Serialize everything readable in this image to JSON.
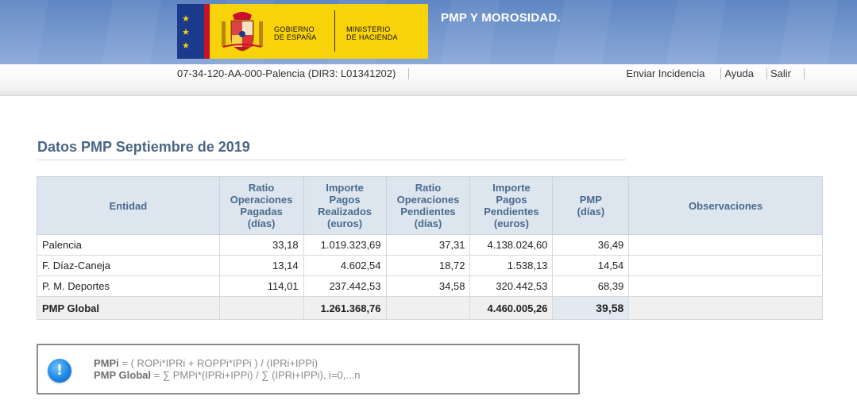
{
  "header": {
    "logo_gobierno": "GOBIERNO DE ESPAÑA",
    "logo_gobierno_l1": "GOBIERNO",
    "logo_gobierno_l2": "DE ESPAÑA",
    "logo_ministerio_l1": "MINISTERIO",
    "logo_ministerio_l2": "DE HACIENDA",
    "app_title": "PMP Y MOROSIDAD.",
    "colors": {
      "banner": "#6f93cc",
      "logo_bg": "#f8d20b",
      "eu_blue": "#1b3a8c"
    }
  },
  "subbar": {
    "org_code": "07-34-120-AA-000-Palencia (DIR3: L01341202)",
    "nav": [
      {
        "label": "Enviar Incidencia"
      },
      {
        "label": "Ayuda"
      },
      {
        "label": "Salir"
      }
    ]
  },
  "section": {
    "title": "Datos PMP Septiembre de 2019"
  },
  "table": {
    "headers": {
      "entidad": "Entidad",
      "rop": [
        "Ratio",
        "Operaciones",
        "Pagadas",
        "(días)"
      ],
      "ipr": [
        "Importe",
        "Pagos",
        "Realizados",
        "(euros)"
      ],
      "ropp": [
        "Ratio",
        "Operaciones",
        "Pendientes",
        "(días)"
      ],
      "ipp": [
        "Importe",
        "Pagos",
        "Pendientes",
        "(euros)"
      ],
      "pmp": [
        "PMP",
        "(días)"
      ],
      "obs": "Observaciones"
    },
    "rows": [
      {
        "entidad": "Palencia",
        "rop": "33,18",
        "ipr": "1.019.323,69",
        "ropp": "37,31",
        "ipp": "4.138.024,60",
        "pmp": "36,49",
        "obs": ""
      },
      {
        "entidad": "F. Díaz-Caneja",
        "rop": "13,14",
        "ipr": "4.602,54",
        "ropp": "18,72",
        "ipp": "1.538,13",
        "pmp": "14,54",
        "obs": ""
      },
      {
        "entidad": "P. M. Deportes",
        "rop": "114,01",
        "ipr": "237.442,53",
        "ropp": "34,58",
        "ipp": "320.442,53",
        "pmp": "68,39",
        "obs": ""
      }
    ],
    "total": {
      "label": "PMP Global",
      "ipr": "1.261.368,76",
      "ipp": "4.460.005,26",
      "pmp": "39,58"
    }
  },
  "info": {
    "icon": "info-icon",
    "icon_glyph": "!",
    "f1_term": "PMPi",
    "f1_expr": " = ( ROPi*IPRi + ROPPi*IPPi ) / (IPRi+IPPi)",
    "f2_term": "PMP Global",
    "f2_expr": " = ∑ PMPi*(IPRi+IPPi) / ∑ (IPRi+IPPi), i=0,...n"
  }
}
